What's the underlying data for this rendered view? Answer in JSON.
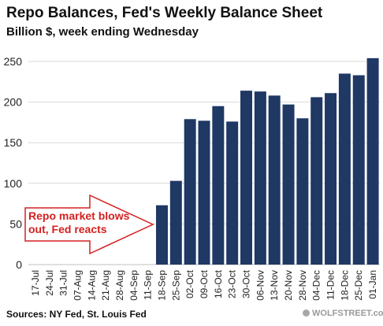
{
  "title": "Repo Balances, Fed's Weekly Balance Sheet",
  "subtitle": "Billion $, week ending Wednesday",
  "source": "Sources: NY Fed, St. Louis Fed",
  "watermark": "WOLFSTREET.com",
  "annotation": {
    "line1": "Repo market blows",
    "line2": "out, Fed reacts"
  },
  "colors": {
    "bar": "#1f3864",
    "grid": "#d9d9d9",
    "annotation": "#d42020",
    "arrow_stroke": "#d42020",
    "arrow_fill": "#ffffff"
  },
  "chart_data": {
    "type": "bar",
    "title": "Repo Balances, Fed's Weekly Balance Sheet",
    "subtitle": "Billion $, week ending Wednesday",
    "xlabel": "",
    "ylabel": "",
    "ylim": [
      0,
      250
    ],
    "yticks": [
      0,
      50,
      100,
      150,
      200,
      250
    ],
    "grid": true,
    "legend": "none",
    "categories": [
      "17-Jul",
      "24-Jul",
      "31-Jul",
      "07-Aug",
      "14-Aug",
      "21-Aug",
      "28-Aug",
      "04-Sep",
      "11-Sep",
      "18-Sep",
      "25-Sep",
      "02-Oct",
      "09-Oct",
      "16-Oct",
      "23-Oct",
      "30-Oct",
      "06-Nov",
      "13-Nov",
      "20-Nov",
      "28-Nov",
      "04-Dec",
      "11-Dec",
      "18-Dec",
      "25-Dec",
      "01-Jan"
    ],
    "values": [
      0,
      0,
      0,
      0,
      0,
      0,
      0,
      0,
      0,
      73,
      103,
      179,
      177,
      195,
      176,
      214,
      213,
      208,
      197,
      180,
      206,
      211,
      235,
      233,
      254
    ]
  }
}
